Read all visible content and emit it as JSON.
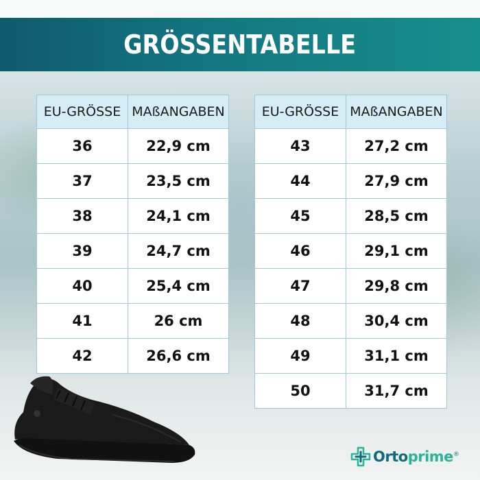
{
  "title": "GRÖSSENTABELLE",
  "headers": {
    "size": "EU-GRÖSSE",
    "measure": "MAßANGABEN"
  },
  "left_table": [
    {
      "size": "36",
      "measure": "22,9 cm"
    },
    {
      "size": "37",
      "measure": "23,5 cm"
    },
    {
      "size": "38",
      "measure": "24,1 cm"
    },
    {
      "size": "39",
      "measure": "24,7 cm"
    },
    {
      "size": "40",
      "measure": "25,4 cm"
    },
    {
      "size": "41",
      "measure": "26 cm"
    },
    {
      "size": "42",
      "measure": "26,6 cm"
    }
  ],
  "right_table": [
    {
      "size": "43",
      "measure": "27,2 cm"
    },
    {
      "size": "44",
      "measure": "27,9 cm"
    },
    {
      "size": "45",
      "measure": "28,5 cm"
    },
    {
      "size": "46",
      "measure": "29,1 cm"
    },
    {
      "size": "47",
      "measure": "29,8 cm"
    },
    {
      "size": "48",
      "measure": "30,4 cm"
    },
    {
      "size": "49",
      "measure": "31,1 cm"
    },
    {
      "size": "50",
      "measure": "31,7 cm"
    }
  ],
  "brand": {
    "part1": "Orto",
    "part2": "prime",
    "mark": "®"
  },
  "colors": {
    "banner": "#137a82",
    "header_cell": "#d6edf6",
    "cell_border": "#9fc8d8",
    "brand_dark": "#0f6a7a",
    "brand_light": "#2bb39a"
  },
  "icons": {
    "shoe": "black-sneaker-image",
    "logo": "plus-cross-icon"
  }
}
